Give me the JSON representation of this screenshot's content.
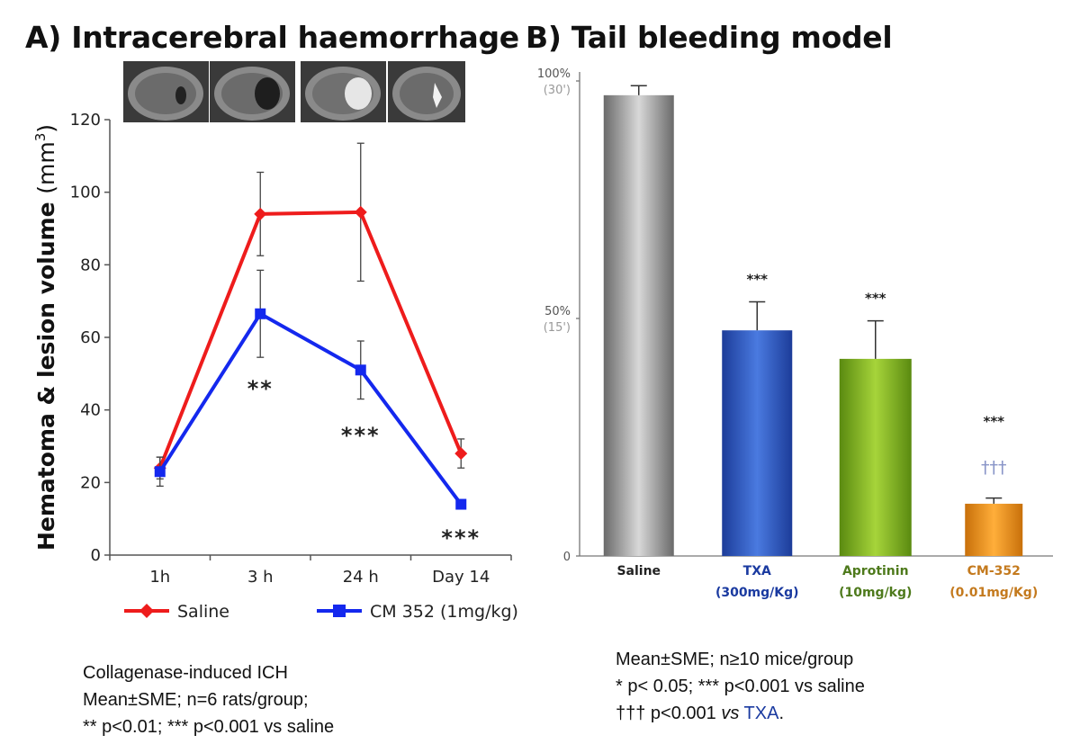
{
  "panel_a": {
    "title": "A) Intracerebral haemorrhage",
    "notes": [
      "Collagenase-induced ICH",
      "Mean±SME; n=6 rats/group;",
      "** p<0.01;  *** p<0.001 vs saline"
    ]
  },
  "panel_b": {
    "title": "B) Tail bleeding model",
    "notes": [
      "Mean±SME; n≥10 mice/group",
      "* p< 0.05; *** p<0.001 vs saline"
    ],
    "note3_prefix": "††† p<0.001 ",
    "note3_vs": "vs",
    "note3_txa": " TXA",
    "note3_end": "."
  },
  "chart_data": [
    {
      "type": "line",
      "ylabel": "Hematoma & lesion volume (mm³)",
      "ylabel_main": "Hematoma & lesion volume ",
      "ylabel_unit": "(mm",
      "ylabel_sup": "3",
      "ylabel_close": ")",
      "categories": [
        "1h",
        "3 h",
        "24 h",
        "Day 14"
      ],
      "ylim": [
        0,
        120
      ],
      "yticks": [
        0,
        20,
        40,
        60,
        80,
        100,
        120
      ],
      "series": [
        {
          "name": "Saline",
          "color": "#ee1c1c",
          "marker": "diamond",
          "values": [
            24,
            94,
            94.5,
            28
          ],
          "errors": [
            3,
            11.5,
            19,
            4
          ]
        },
        {
          "name": "CM 352 (1mg/kg)",
          "color": "#1428ee",
          "marker": "square",
          "values": [
            23,
            66.5,
            51,
            14
          ],
          "errors": [
            4,
            12,
            8,
            1
          ]
        }
      ],
      "annotations": [
        "",
        "**",
        "***",
        "***"
      ],
      "legend": "bottom"
    },
    {
      "type": "bar",
      "categories": [
        "Saline",
        "TXA",
        "Aprotinin",
        "CM-352"
      ],
      "sublabels": [
        "",
        "(300mg/Kg)",
        "(10mg/kg)",
        "(0.01mg/Kg)"
      ],
      "label_colors": [
        "#222222",
        "#1a3aa0",
        "#4e7a1c",
        "#c47a1e"
      ],
      "values": [
        97,
        47.5,
        41.5,
        11
      ],
      "errors": [
        2,
        6,
        8,
        1.2
      ],
      "ylim": [
        0,
        100
      ],
      "ytick_labels": [
        {
          "v": 0,
          "label": "0",
          "sub": ""
        },
        {
          "v": 50,
          "label": "50%",
          "sub": "(15')"
        },
        {
          "v": 100,
          "label": "100%",
          "sub": "(30')"
        }
      ],
      "annotations": [
        "",
        "***",
        "***",
        "***"
      ],
      "annotations2": [
        "",
        "",
        "",
        "†††"
      ],
      "grid": false
    }
  ]
}
